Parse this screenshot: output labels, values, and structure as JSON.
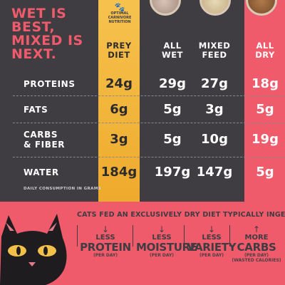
{
  "headline": [
    "WET IS",
    "BEST,",
    "MIXED IS",
    "NEXT."
  ],
  "badge": {
    "icon": "paw-icon",
    "glyph": "🐾",
    "text": "OPTIMAL CARNIVORE NUTRITION"
  },
  "columns": {
    "prey": [
      "PREY",
      "DIET"
    ],
    "wet": [
      "ALL",
      "WET"
    ],
    "mixed": [
      "MIXED",
      "FEED"
    ],
    "dry": [
      "ALL",
      "DRY"
    ]
  },
  "rows": [
    {
      "label": [
        "PROTEINS"
      ],
      "prey": "24g",
      "wet": "29g",
      "mixed": "27g",
      "dry": "18g"
    },
    {
      "label": [
        "FATS"
      ],
      "prey": "6g",
      "wet": "5g",
      "mixed": "3g",
      "dry": "5g"
    },
    {
      "label": [
        "CARBS",
        "& FIBER"
      ],
      "prey": "3g",
      "wet": "5g",
      "mixed": "10g",
      "dry": "19g"
    },
    {
      "label": [
        "WATER"
      ],
      "prey": "184g",
      "wet": "197g",
      "mixed": "147g",
      "dry": "5g"
    }
  ],
  "footnote": "DAILY CONSUMPTION IN GRAMS",
  "intro": {
    "strong": "CATS FED AN EXCLUSIVELY DRY DIET",
    "rest": " TYPICALLY INGEST:"
  },
  "effects": [
    {
      "arrow": "↓",
      "small": "LESS",
      "big": "PROTEIN",
      "note": "(PER DAY)",
      "note2": ""
    },
    {
      "arrow": "↓",
      "small": "LESS",
      "big": "MOISTURE",
      "note": "(PER DAY)",
      "note2": ""
    },
    {
      "arrow": "↓",
      "small": "LESS",
      "big": "VARIETY",
      "note": "(PER DAY)",
      "note2": ""
    },
    {
      "arrow": "↑",
      "small": "MORE",
      "big": "CARBS",
      "note": "(PER DAY)",
      "note2": "(WASTED CALORIES)"
    }
  ],
  "colors": {
    "pink": "#ef5b6b",
    "dark": "#3f3c42",
    "gold": "#f2b43c"
  }
}
